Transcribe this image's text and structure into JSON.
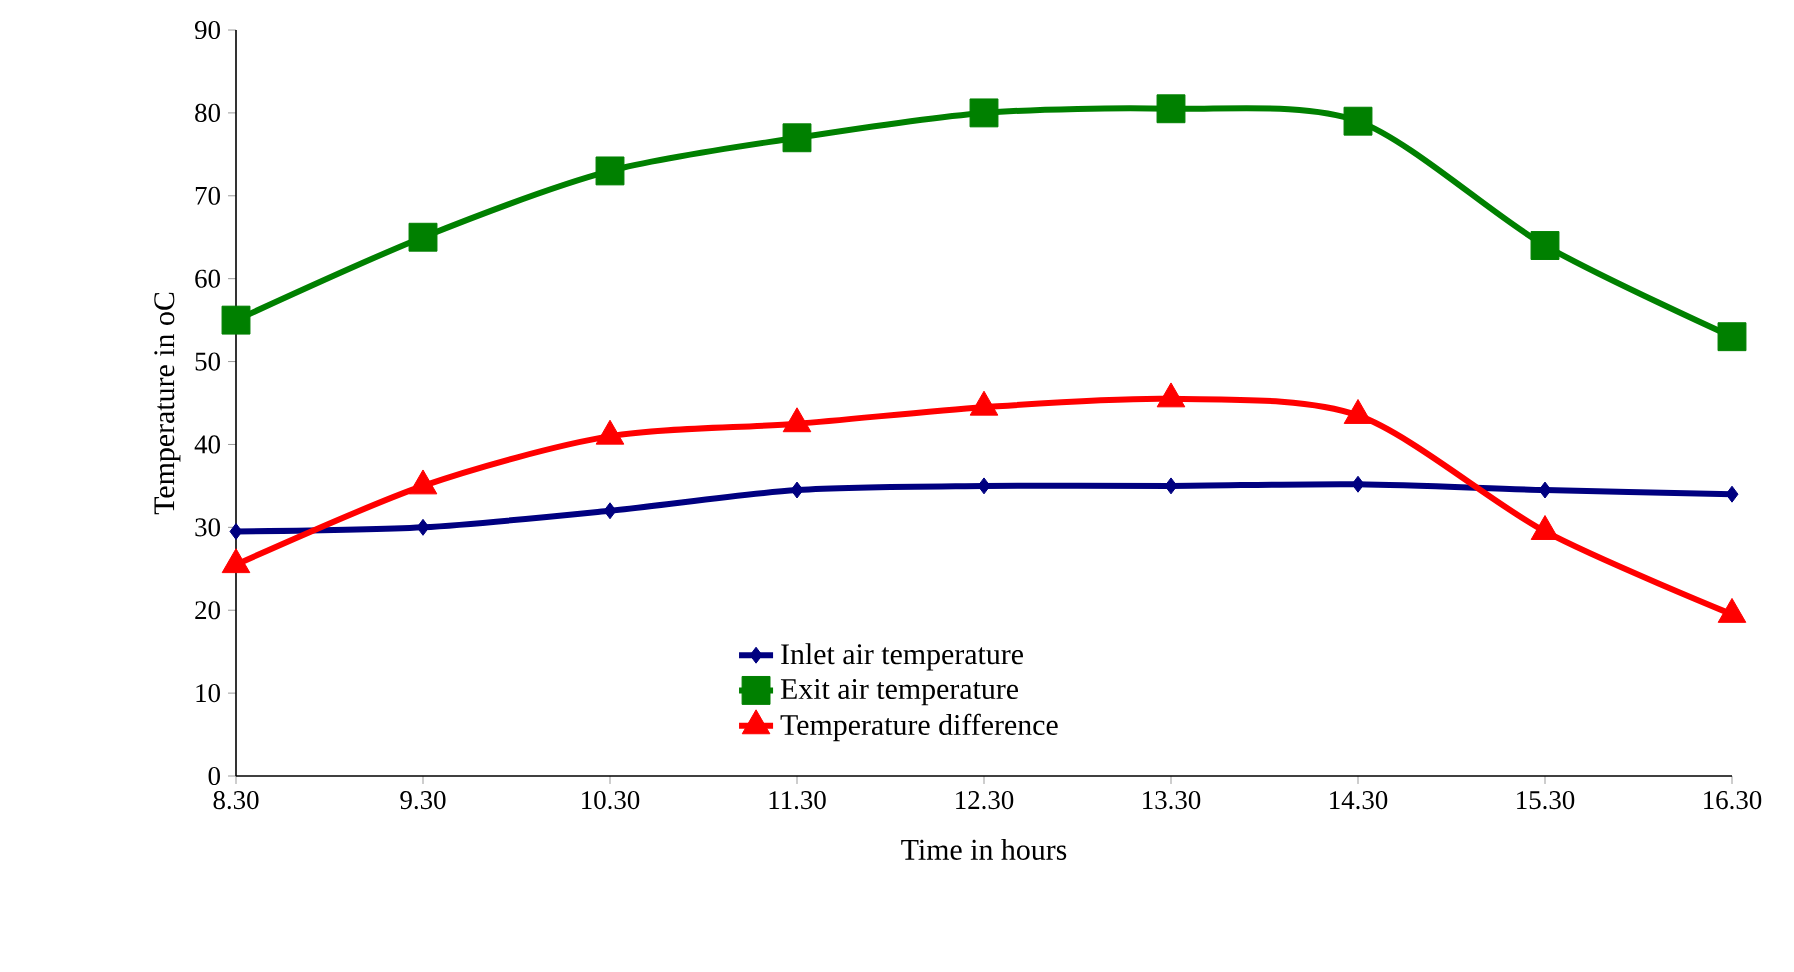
{
  "chart_data": {
    "type": "line",
    "xlabel": "Time in hours",
    "ylabel": "Temperature in oC",
    "categories": [
      "8.30",
      "9.30",
      "10.30",
      "11.30",
      "12.30",
      "13.30",
      "14.30",
      "15.30",
      "16.30"
    ],
    "series": [
      {
        "name": "Inlet air temperature",
        "color": "#000080",
        "marker": "diamond",
        "values": [
          29.5,
          30,
          32,
          34.5,
          35,
          35,
          35.2,
          34.5,
          34
        ]
      },
      {
        "name": "Exit air temperature",
        "color": "#008000",
        "marker": "square",
        "values": [
          55,
          65,
          73,
          77,
          80,
          80.5,
          79,
          64,
          53
        ]
      },
      {
        "name": "Temperature difference",
        "color": "#ff0000",
        "marker": "triangle",
        "values": [
          25.5,
          35,
          41,
          42.5,
          44.5,
          45.5,
          43.5,
          29.5,
          19.5
        ]
      }
    ],
    "ylim": [
      0,
      90
    ],
    "yticks": [
      0,
      10,
      20,
      30,
      40,
      50,
      60,
      70,
      80,
      90
    ],
    "legend": "bottom",
    "grid": false
  }
}
